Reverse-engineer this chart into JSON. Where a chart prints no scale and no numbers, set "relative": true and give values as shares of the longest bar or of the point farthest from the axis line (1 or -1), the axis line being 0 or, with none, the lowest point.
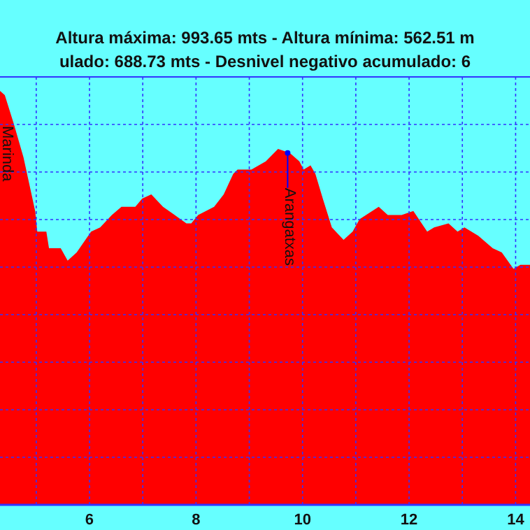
{
  "chart_data": {
    "type": "area",
    "title": "Altura máxima: 993.65 mts - Altura mínima: 562.51 m",
    "subtitle": "ulado: 688.73 mts - Desnivel negativo acumulado: 6",
    "relative": true,
    "grid": true,
    "x": [
      4.32,
      4.41,
      4.58,
      4.76,
      4.98,
      5.02,
      5.19,
      5.24,
      5.46,
      5.59,
      5.76,
      6.03,
      6.2,
      6.42,
      6.6,
      6.86,
      6.99,
      7.16,
      7.38,
      7.6,
      7.82,
      7.91,
      8.04,
      8.34,
      8.52,
      8.7,
      8.78,
      8.96,
      9.04,
      9.31,
      9.54,
      9.76,
      9.94,
      10.02,
      10.15,
      10.24,
      10.38,
      10.55,
      10.77,
      10.94,
      11.07,
      11.43,
      11.6,
      11.86,
      12.08,
      12.34,
      12.47,
      12.74,
      12.91,
      13.04,
      13.3,
      13.57,
      13.74,
      13.96,
      14.09,
      14.27
    ],
    "series": [
      {
        "color": "#ff0000",
        "values": [
          1.0,
          0.99,
          0.92,
          0.84,
          0.71,
          0.66,
          0.66,
          0.62,
          0.62,
          0.59,
          0.61,
          0.66,
          0.67,
          0.7,
          0.72,
          0.72,
          0.74,
          0.75,
          0.72,
          0.7,
          0.68,
          0.68,
          0.7,
          0.72,
          0.75,
          0.8,
          0.81,
          0.81,
          0.81,
          0.83,
          0.86,
          0.85,
          0.83,
          0.81,
          0.82,
          0.8,
          0.74,
          0.67,
          0.64,
          0.66,
          0.69,
          0.72,
          0.7,
          0.7,
          0.71,
          0.66,
          0.67,
          0.68,
          0.66,
          0.67,
          0.65,
          0.62,
          0.61,
          0.57,
          0.58,
          0.58
        ]
      }
    ],
    "xlim": [
      4.32,
      14.27
    ],
    "xticks": [
      {
        "value": 5,
        "label": null
      },
      6,
      {
        "value": 7,
        "label": null
      },
      8,
      {
        "value": 9,
        "label": null
      },
      10,
      {
        "value": 11,
        "label": null
      },
      12,
      {
        "value": 13,
        "label": null
      },
      14
    ],
    "annotations": [
      {
        "text": "Marinda",
        "x": 4.32,
        "y": 1.0
      },
      {
        "text": "Arangatxas",
        "x": 9.72,
        "y": 0.85
      }
    ]
  }
}
